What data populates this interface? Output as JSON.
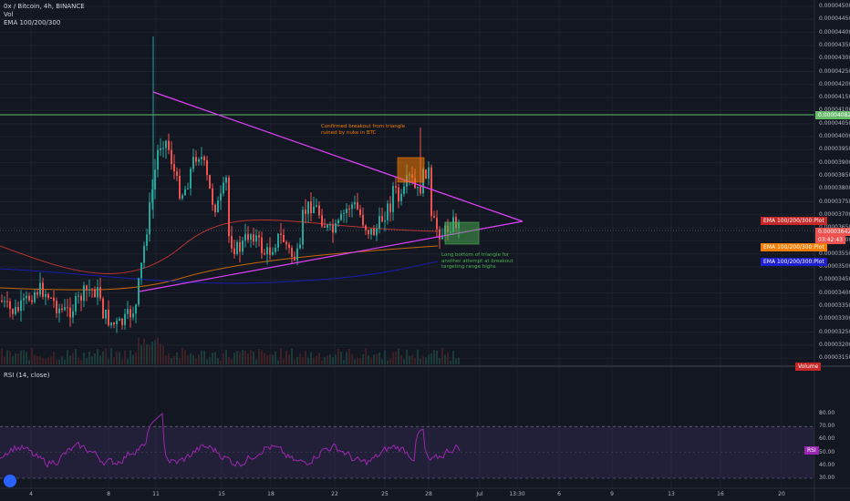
{
  "header": {
    "symbol_line": "0x / Bitcoin, 4h, BINANCE",
    "vol_label": "Vol",
    "ema_label": "EMA 100/200/300"
  },
  "rsi_pane": {
    "title": "RSI (14, close)",
    "badge": "RSI",
    "ticks": [
      "80.00",
      "70.00",
      "60.00",
      "50.00",
      "40.00",
      "30.00"
    ]
  },
  "price_axis": {
    "ticks": [
      "0.00004500",
      "0.00004450",
      "0.00004400",
      "0.00004350",
      "0.00004300",
      "0.00004250",
      "0.00004200",
      "0.00004150",
      "0.00004100",
      "0.00004050",
      "0.00004000",
      "0.00003950",
      "0.00003900",
      "0.00003850",
      "0.00003800",
      "0.00003750",
      "0.00003700",
      "0.00003650",
      "0.00003600",
      "0.00003550",
      "0.00003500",
      "0.00003450",
      "0.00003400",
      "0.00003350",
      "0.00003300",
      "0.00003250",
      "0.00003200",
      "0.00003150"
    ],
    "resistance_badge": "0.00004082",
    "last_price_badge": "0.00003642",
    "countdown_badge": "03:42:43",
    "ema_red_badge": "EMA 100/200/300:Plot",
    "ema_orange_badge": "EMA 100/200/300:Plot",
    "ema_blue_badge": "EMA 100/200/300:Plot",
    "volume_badge": "Volume"
  },
  "time_axis": {
    "ticks": [
      "4",
      "8",
      "11",
      "15",
      "18",
      "22",
      "25",
      "28",
      "Jul",
      "13:30",
      "6",
      "9",
      "13",
      "16",
      "20"
    ]
  },
  "annotations": {
    "breakout_note": "Confirmed breakout from triangle\nruined by nuke in BTC",
    "long_note": "Long bottom of triangle for\nanother attempt at breakout\ntargeting range highs"
  },
  "colors": {
    "background": "#131722",
    "candle_up": "#26a69a",
    "candle_down": "#ef5350",
    "triangle": "#e040fb",
    "resistance": "#66bb6a",
    "ema_red": "#e53935",
    "ema_orange": "#f57c00",
    "ema_blue": "#1e1ed2",
    "rsi_line": "#9c27b0",
    "rsi_band": "#7e57c2"
  },
  "icons": {
    "logo": "tradingview-logo-icon"
  }
}
